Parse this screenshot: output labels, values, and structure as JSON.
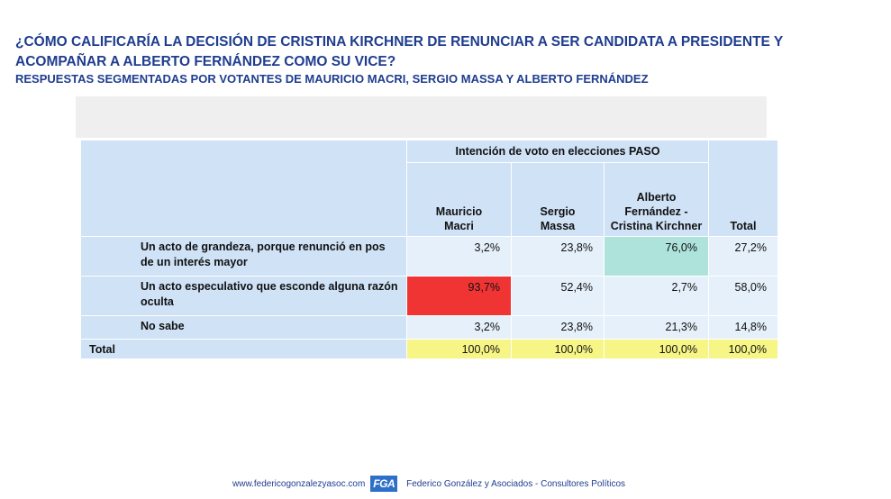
{
  "header": {
    "title": "¿CÓMO CALIFICARÍA LA DECISIÓN DE CRISTINA KIRCHNER DE RENUNCIAR A SER CANDIDATA A PRESIDENTE Y ACOMPAÑAR A ALBERTO FERNÁNDEZ COMO SU VICE?",
    "subtitle": "RESPUESTAS SEGMENTADAS POR VOTANTES DE MAURICIO MACRI, SERGIO MASSA Y ALBERTO FERNÁNDEZ"
  },
  "table": {
    "group_header": "Intención de voto en elecciones PASO",
    "columns": [
      "Mauricio Macri",
      "Sergio Massa",
      "Alberto Fernández - Cristina Kirchner",
      "Total"
    ],
    "rows": [
      {
        "label": "Un acto de grandeza, porque renunció en pos de un interés mayor",
        "values": [
          "3,2%",
          "23,8%",
          "76,0%",
          "27,2%"
        ]
      },
      {
        "label": "Un acto especulativo que esconde alguna razón oculta",
        "values": [
          "93,7%",
          "52,4%",
          "2,7%",
          "58,0%"
        ]
      },
      {
        "label": "No sabe",
        "values": [
          "3,2%",
          "23,8%",
          "21,3%",
          "14,8%"
        ]
      }
    ],
    "total_row": {
      "label": "Total",
      "values": [
        "100,0%",
        "100,0%",
        "100,0%",
        "100,0%"
      ]
    },
    "highlight_colors": {
      "high_red": "#f03434",
      "high_teal": "#aee3dc",
      "total_yellow": "#f7f586",
      "header_blue": "#cfe2f6"
    }
  },
  "footer": {
    "website": "www.federicogonzalezyasoc.com",
    "logo_text": "FGA",
    "firm": "Federico González y Asociados - Consultores Políticos"
  }
}
